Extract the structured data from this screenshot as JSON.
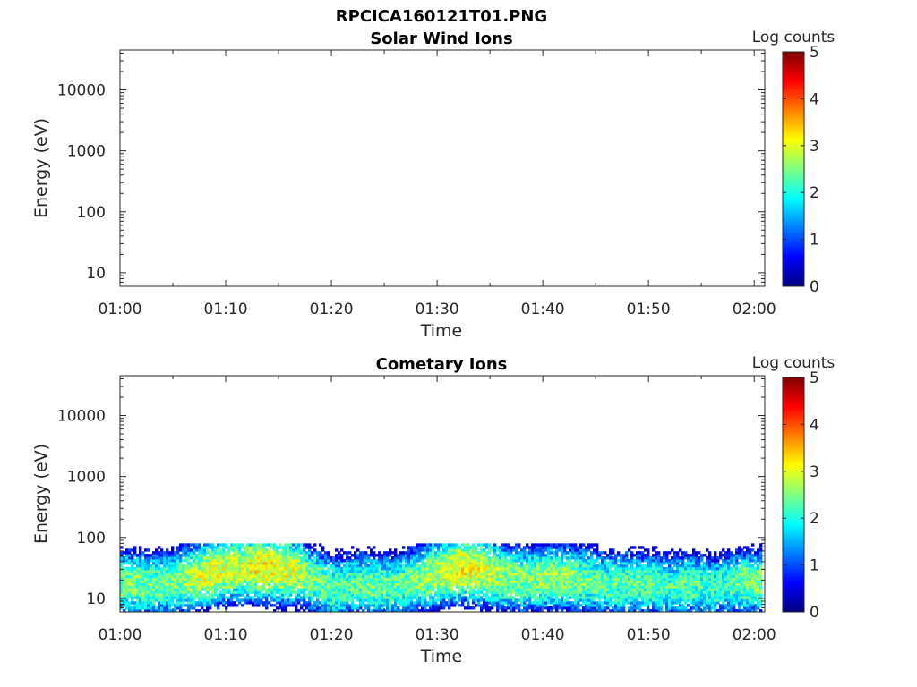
{
  "figure": {
    "title": "RPCICA160121T01.PNG"
  },
  "chart_data": [
    {
      "type": "heatmap",
      "title": "Solar Wind Ions",
      "xlabel": "Time",
      "ylabel": "Energy (eV)",
      "x_ticks": [
        "01:00",
        "01:10",
        "01:20",
        "01:30",
        "01:40",
        "01:50",
        "02:00"
      ],
      "xlim": [
        "01:00",
        "02:01"
      ],
      "yscale": "log",
      "y_ticks": [
        "10",
        "100",
        "1000",
        "10000"
      ],
      "ylim": [
        6,
        45000
      ],
      "colorbar": {
        "label": "Log counts",
        "ticks": [
          "0",
          "1",
          "2",
          "3",
          "4",
          "5"
        ],
        "range": [
          0,
          5
        ],
        "colormap": "jet"
      },
      "bands": []
    },
    {
      "type": "heatmap",
      "title": "Cometary Ions",
      "xlabel": "Time",
      "ylabel": "Energy (eV)",
      "x_ticks": [
        "01:00",
        "01:10",
        "01:20",
        "01:30",
        "01:40",
        "01:50",
        "02:00"
      ],
      "xlim": [
        "01:00",
        "02:01"
      ],
      "yscale": "log",
      "y_ticks": [
        "10",
        "100",
        "1000",
        "10000"
      ],
      "ylim": [
        6,
        45000
      ],
      "colorbar": {
        "label": "Log counts",
        "ticks": [
          "0",
          "1",
          "2",
          "3",
          "4",
          "5"
        ],
        "range": [
          0,
          5
        ],
        "colormap": "jet"
      },
      "energy_range_ev": [
        6,
        80
      ],
      "bands": [
        {
          "time": "01:00",
          "peak_energy_ev": 18,
          "peak_log_counts": 2.5
        },
        {
          "time": "01:03",
          "peak_energy_ev": 17,
          "peak_log_counts": 2.4
        },
        {
          "time": "01:05",
          "peak_energy_ev": 18,
          "peak_log_counts": 2.4
        },
        {
          "time": "01:07",
          "peak_energy_ev": 22,
          "peak_log_counts": 2.8
        },
        {
          "time": "01:09",
          "peak_energy_ev": 28,
          "peak_log_counts": 3.0
        },
        {
          "time": "01:11",
          "peak_energy_ev": 32,
          "peak_log_counts": 2.8
        },
        {
          "time": "01:13",
          "peak_energy_ev": 33,
          "peak_log_counts": 3.1
        },
        {
          "time": "01:15",
          "peak_energy_ev": 30,
          "peak_log_counts": 3.0
        },
        {
          "time": "01:17",
          "peak_energy_ev": 28,
          "peak_log_counts": 2.8
        },
        {
          "time": "01:18",
          "peak_energy_ev": 20,
          "peak_log_counts": 2.4
        },
        {
          "time": "01:20",
          "peak_energy_ev": 15,
          "peak_log_counts": 2.3
        },
        {
          "time": "01:22",
          "peak_energy_ev": 17,
          "peak_log_counts": 2.3
        },
        {
          "time": "01:24",
          "peak_energy_ev": 16,
          "peak_log_counts": 2.4
        },
        {
          "time": "01:26",
          "peak_energy_ev": 16,
          "peak_log_counts": 2.3
        },
        {
          "time": "01:28",
          "peak_energy_ev": 20,
          "peak_log_counts": 2.5
        },
        {
          "time": "01:30",
          "peak_energy_ev": 26,
          "peak_log_counts": 2.8
        },
        {
          "time": "01:32",
          "peak_energy_ev": 32,
          "peak_log_counts": 3.1
        },
        {
          "time": "01:34",
          "peak_energy_ev": 30,
          "peak_log_counts": 3.0
        },
        {
          "time": "01:36",
          "peak_energy_ev": 22,
          "peak_log_counts": 2.6
        },
        {
          "time": "01:38",
          "peak_energy_ev": 20,
          "peak_log_counts": 2.5
        },
        {
          "time": "01:40",
          "peak_energy_ev": 22,
          "peak_log_counts": 2.6
        },
        {
          "time": "01:42",
          "peak_energy_ev": 22,
          "peak_log_counts": 2.6
        },
        {
          "time": "01:44",
          "peak_energy_ev": 20,
          "peak_log_counts": 2.4
        },
        {
          "time": "01:46",
          "peak_energy_ev": 17,
          "peak_log_counts": 2.3
        },
        {
          "time": "01:48",
          "peak_energy_ev": 18,
          "peak_log_counts": 2.3
        },
        {
          "time": "01:50",
          "peak_energy_ev": 17,
          "peak_log_counts": 2.3
        },
        {
          "time": "01:52",
          "peak_energy_ev": 16,
          "peak_log_counts": 2.2
        },
        {
          "time": "01:54",
          "peak_energy_ev": 17,
          "peak_log_counts": 2.3
        },
        {
          "time": "01:56",
          "peak_energy_ev": 15,
          "peak_log_counts": 2.1
        },
        {
          "time": "01:58",
          "peak_energy_ev": 18,
          "peak_log_counts": 2.3
        },
        {
          "time": "02:00",
          "peak_energy_ev": 18,
          "peak_log_counts": 2.5
        }
      ]
    }
  ]
}
